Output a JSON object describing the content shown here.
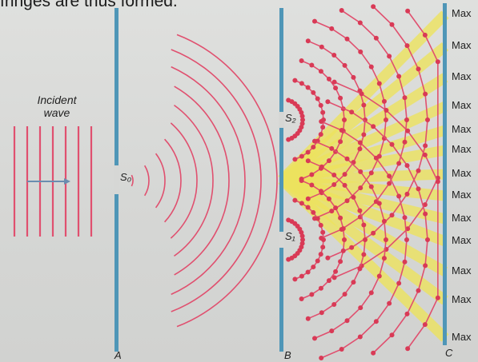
{
  "top_text": "fringes are thus formed.",
  "caption": {
    "line1": "Incident",
    "line2": "wave"
  },
  "slits": {
    "s0": "S₀",
    "s1": "S₁",
    "s2": "S₂"
  },
  "screens": {
    "a": "A",
    "b": "B",
    "c": "C"
  },
  "max_labels": [
    "Max",
    "Max",
    "Max",
    "Max",
    "Max",
    "Max",
    "Max",
    "Max",
    "Max",
    "Max",
    "Max",
    "Max",
    "Max"
  ],
  "colors": {
    "wave": "#e0506f",
    "barrier": "#4f96b7",
    "max_band": "#ece25e",
    "node": "#d93a56"
  }
}
